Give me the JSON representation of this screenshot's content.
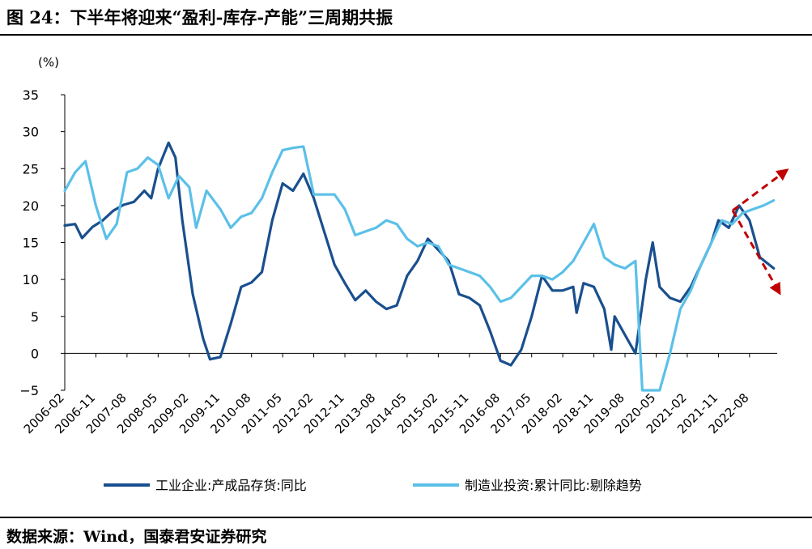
{
  "figure": {
    "title": "图 24：下半年将迎来“盈利-库存-产能”三周期共振",
    "source": "数据来源：Wind，国泰君安证券研究"
  },
  "colors": {
    "inventory": "#1a4f8e",
    "investment": "#5bc0e8",
    "arrow": "#c00000"
  },
  "annotations": [
    "red dashed arrow pointing up-right",
    "red dashed arrow pointing down-right"
  ],
  "chart_data": {
    "type": "line",
    "ylabel": "(%)",
    "ylim": [
      -5,
      35
    ],
    "yticks": [
      -5,
      0,
      5,
      10,
      15,
      20,
      25,
      30,
      35
    ],
    "xlim": [
      "2006-02",
      "2023-04"
    ],
    "xticks": [
      "2006-02",
      "2006-11",
      "2007-08",
      "2008-05",
      "2009-02",
      "2009-11",
      "2010-08",
      "2011-05",
      "2012-02",
      "2012-11",
      "2013-08",
      "2014-05",
      "2015-02",
      "2015-11",
      "2016-08",
      "2017-05",
      "2018-02",
      "2018-11",
      "2019-08",
      "2020-05",
      "2021-02",
      "2021-11",
      "2022-08"
    ],
    "legend_position": "bottom",
    "grid": false,
    "series": [
      {
        "name": "工业企业:产成品存货:同比",
        "color_key": "inventory",
        "points": [
          [
            "2006-02",
            17.3
          ],
          [
            "2006-05",
            17.5
          ],
          [
            "2006-07",
            15.6
          ],
          [
            "2006-10",
            17.1
          ],
          [
            "2007-01",
            18.0
          ],
          [
            "2007-04",
            19.3
          ],
          [
            "2007-07",
            20.1
          ],
          [
            "2007-10",
            20.5
          ],
          [
            "2008-01",
            22.0
          ],
          [
            "2008-03",
            21.0
          ],
          [
            "2008-05",
            25.0
          ],
          [
            "2008-08",
            28.5
          ],
          [
            "2008-10",
            26.5
          ],
          [
            "2008-12",
            18.0
          ],
          [
            "2009-03",
            8.0
          ],
          [
            "2009-06",
            2.0
          ],
          [
            "2009-08",
            -0.8
          ],
          [
            "2009-11",
            -0.5
          ],
          [
            "2010-02",
            4.0
          ],
          [
            "2010-05",
            9.0
          ],
          [
            "2010-08",
            9.6
          ],
          [
            "2010-11",
            11.0
          ],
          [
            "2011-02",
            18.0
          ],
          [
            "2011-05",
            23.0
          ],
          [
            "2011-08",
            22.0
          ],
          [
            "2011-11",
            24.3
          ],
          [
            "2012-02",
            21.0
          ],
          [
            "2012-05",
            16.5
          ],
          [
            "2012-08",
            12.0
          ],
          [
            "2012-11",
            9.5
          ],
          [
            "2013-02",
            7.2
          ],
          [
            "2013-05",
            8.5
          ],
          [
            "2013-08",
            7.0
          ],
          [
            "2013-11",
            6.0
          ],
          [
            "2014-02",
            6.5
          ],
          [
            "2014-05",
            10.5
          ],
          [
            "2014-08",
            12.5
          ],
          [
            "2014-11",
            15.5
          ],
          [
            "2015-02",
            14.0
          ],
          [
            "2015-05",
            12.5
          ],
          [
            "2015-08",
            8.0
          ],
          [
            "2015-11",
            7.5
          ],
          [
            "2016-02",
            6.5
          ],
          [
            "2016-05",
            3.0
          ],
          [
            "2016-08",
            -1.0
          ],
          [
            "2016-11",
            -1.6
          ],
          [
            "2017-02",
            0.5
          ],
          [
            "2017-05",
            5.0
          ],
          [
            "2017-08",
            10.5
          ],
          [
            "2017-11",
            8.5
          ],
          [
            "2018-02",
            8.5
          ],
          [
            "2018-05",
            9.0
          ],
          [
            "2018-06",
            5.5
          ],
          [
            "2018-08",
            9.5
          ],
          [
            "2018-11",
            9.0
          ],
          [
            "2019-02",
            6.0
          ],
          [
            "2019-04",
            0.5
          ],
          [
            "2019-05",
            5.0
          ],
          [
            "2019-08",
            2.5
          ],
          [
            "2019-11",
            0.0
          ],
          [
            "2020-02",
            10.0
          ],
          [
            "2020-04",
            15.0
          ],
          [
            "2020-06",
            9.0
          ],
          [
            "2020-09",
            7.5
          ],
          [
            "2020-12",
            7.0
          ],
          [
            "2021-03",
            9.0
          ],
          [
            "2021-06",
            12.0
          ],
          [
            "2021-09",
            15.0
          ],
          [
            "2021-11",
            18.0
          ],
          [
            "2022-02",
            17.0
          ],
          [
            "2022-05",
            20.0
          ],
          [
            "2022-08",
            18.0
          ],
          [
            "2022-11",
            13.0
          ],
          [
            "2023-03",
            11.5
          ]
        ]
      },
      {
        "name": "制造业投资:累计同比:剔除趋势",
        "color_key": "investment",
        "points": [
          [
            "2006-02",
            22.0
          ],
          [
            "2006-05",
            24.5
          ],
          [
            "2006-08",
            26.0
          ],
          [
            "2006-11",
            20.0
          ],
          [
            "2007-02",
            15.5
          ],
          [
            "2007-05",
            17.5
          ],
          [
            "2007-08",
            24.5
          ],
          [
            "2007-11",
            25.0
          ],
          [
            "2008-02",
            26.5
          ],
          [
            "2008-05",
            25.5
          ],
          [
            "2008-08",
            21.0
          ],
          [
            "2008-11",
            24.0
          ],
          [
            "2009-02",
            22.5
          ],
          [
            "2009-04",
            17.0
          ],
          [
            "2009-07",
            22.0
          ],
          [
            "2009-11",
            19.5
          ],
          [
            "2010-02",
            17.0
          ],
          [
            "2010-05",
            18.5
          ],
          [
            "2010-08",
            19.0
          ],
          [
            "2010-11",
            21.0
          ],
          [
            "2011-02",
            24.5
          ],
          [
            "2011-05",
            27.5
          ],
          [
            "2011-08",
            27.8
          ],
          [
            "2011-11",
            28.0
          ],
          [
            "2012-02",
            21.5
          ],
          [
            "2012-05",
            21.5
          ],
          [
            "2012-08",
            21.5
          ],
          [
            "2012-11",
            19.5
          ],
          [
            "2013-02",
            16.0
          ],
          [
            "2013-05",
            16.5
          ],
          [
            "2013-08",
            17.0
          ],
          [
            "2013-11",
            18.0
          ],
          [
            "2014-02",
            17.5
          ],
          [
            "2014-05",
            15.5
          ],
          [
            "2014-08",
            14.5
          ],
          [
            "2014-11",
            15.0
          ],
          [
            "2015-02",
            14.5
          ],
          [
            "2015-05",
            12.0
          ],
          [
            "2015-08",
            11.5
          ],
          [
            "2015-11",
            11.0
          ],
          [
            "2016-02",
            10.5
          ],
          [
            "2016-05",
            9.0
          ],
          [
            "2016-08",
            7.0
          ],
          [
            "2016-11",
            7.5
          ],
          [
            "2017-02",
            9.0
          ],
          [
            "2017-05",
            10.5
          ],
          [
            "2017-08",
            10.5
          ],
          [
            "2017-11",
            10.0
          ],
          [
            "2018-02",
            11.0
          ],
          [
            "2018-05",
            12.5
          ],
          [
            "2018-08",
            15.0
          ],
          [
            "2018-11",
            17.5
          ],
          [
            "2019-02",
            13.0
          ],
          [
            "2019-05",
            12.0
          ],
          [
            "2019-08",
            11.5
          ],
          [
            "2019-11",
            12.5
          ],
          [
            "2020-01",
            -5.0
          ],
          [
            "2020-06",
            -5.0
          ],
          [
            "2020-09",
            0.0
          ],
          [
            "2020-12",
            6.0
          ],
          [
            "2021-03",
            8.5
          ],
          [
            "2021-06",
            12.0
          ],
          [
            "2021-09",
            15.0
          ],
          [
            "2021-12",
            18.0
          ],
          [
            "2022-03",
            17.5
          ],
          [
            "2022-06",
            19.0
          ],
          [
            "2022-09",
            19.5
          ],
          [
            "2022-12",
            20.0
          ],
          [
            "2023-03",
            20.7
          ]
        ]
      }
    ]
  }
}
